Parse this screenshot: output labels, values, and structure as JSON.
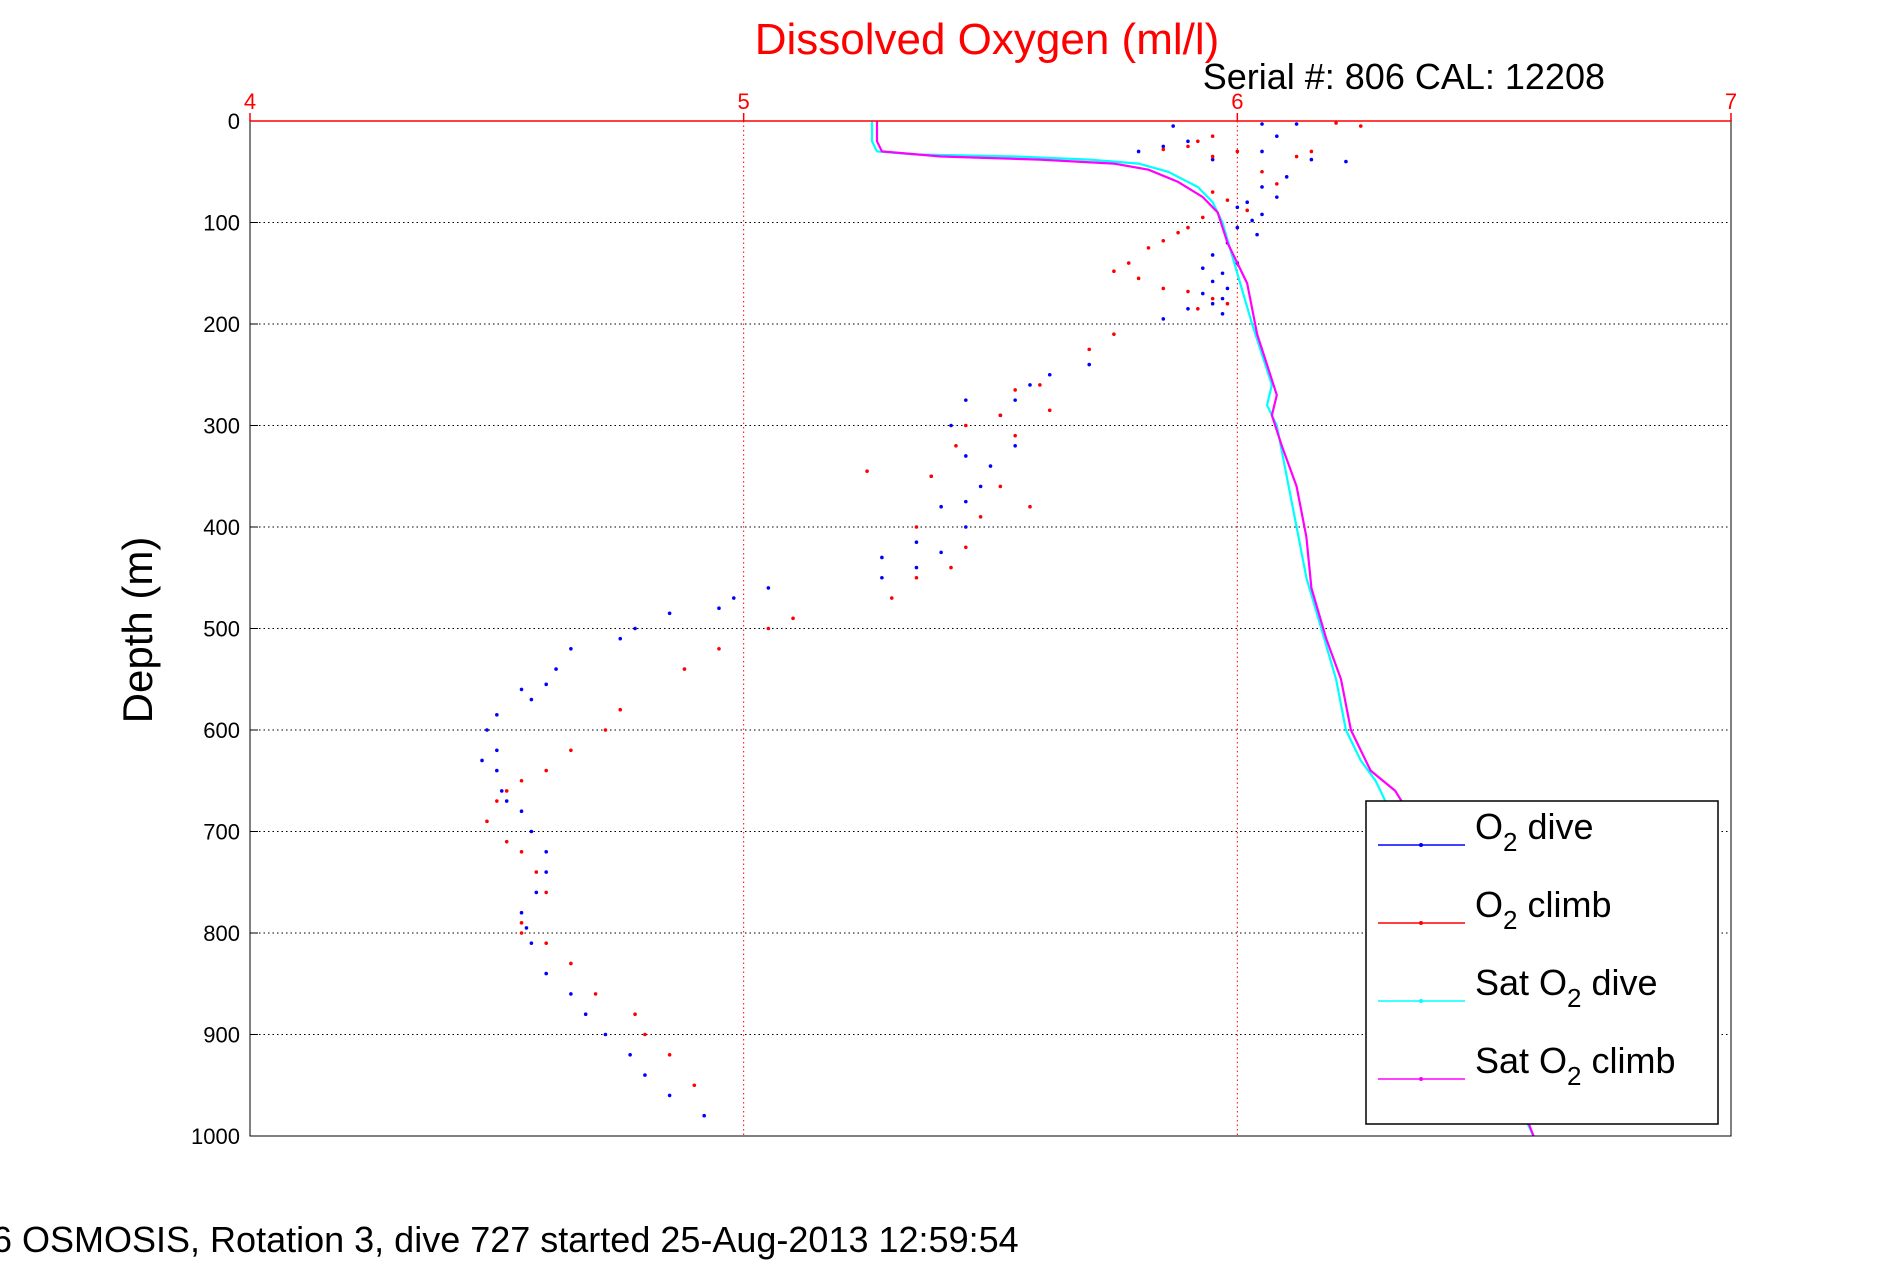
{
  "chart_data": {
    "type": "scatter",
    "title": "Dissolved Oxygen (ml/l)",
    "subtitle": "Serial #: 806  CAL: 12208",
    "footer": "6 OSMOSIS, Rotation 3, dive 727 started 25-Aug-2013 12:59:54",
    "xlabel": "",
    "ylabel": "Depth (m)",
    "xlim": [
      4,
      7
    ],
    "ylim": [
      0,
      1000
    ],
    "y_reversed": true,
    "x_axis_position": "top",
    "grid": true,
    "legend_position": "bottom-right",
    "x_ticks": [
      "4",
      "5",
      "6",
      "7"
    ],
    "y_ticks": [
      "0",
      "100",
      "200",
      "300",
      "400",
      "500",
      "600",
      "700",
      "800",
      "900",
      "1000"
    ],
    "colors": {
      "title": "#ff0000",
      "x_axis": "#ff0000",
      "o2_dive": "#0000ff",
      "o2_climb": "#ff0000",
      "sat_dive": "#00ffff",
      "sat_climb": "#ff00ff"
    },
    "series": [
      {
        "name": "O2 dive",
        "label_main": "O",
        "label_sub": "2",
        "label_tail": " dive",
        "style": "points",
        "color": "#0000ff",
        "x": [
          5.87,
          6.05,
          6.12,
          6.08,
          5.9,
          5.85,
          6.05,
          5.8,
          5.95,
          6.15,
          6.22,
          6.1,
          6.05,
          6.08,
          6.02,
          6.0,
          6.05,
          6.03,
          6.0,
          6.04,
          5.98,
          5.95,
          6.0,
          5.93,
          5.97,
          5.95,
          5.98,
          5.93,
          5.97,
          5.95,
          5.9,
          5.97,
          5.85,
          5.7,
          5.62,
          5.58,
          5.55,
          5.45,
          5.52,
          5.42,
          5.55,
          5.45,
          5.5,
          5.38,
          5.48,
          5.45,
          5.4,
          5.45,
          5.35,
          5.4,
          5.28,
          5.35,
          5.28,
          5.05,
          4.98,
          4.95,
          4.85,
          4.78,
          4.75,
          4.65,
          4.62,
          4.6,
          4.55,
          4.57,
          4.5,
          4.48,
          4.5,
          4.47,
          4.5,
          4.51,
          4.52,
          4.55,
          4.57,
          4.6,
          4.6,
          4.58,
          4.55,
          4.56,
          4.57,
          4.6,
          4.65,
          4.68,
          4.72,
          4.77,
          4.8,
          4.85,
          4.92
        ],
        "y": [
          5,
          3,
          3,
          15,
          20,
          25,
          30,
          30,
          38,
          38,
          40,
          55,
          65,
          75,
          80,
          85,
          92,
          98,
          105,
          112,
          120,
          132,
          140,
          145,
          150,
          158,
          165,
          170,
          175,
          180,
          185,
          190,
          195,
          240,
          250,
          260,
          275,
          275,
          290,
          300,
          320,
          330,
          340,
          350,
          360,
          375,
          380,
          400,
          415,
          425,
          430,
          440,
          450,
          460,
          470,
          480,
          485,
          500,
          510,
          520,
          540,
          555,
          560,
          570,
          585,
          600,
          620,
          630,
          640,
          660,
          670,
          680,
          700,
          720,
          740,
          760,
          780,
          795,
          810,
          840,
          860,
          880,
          900,
          920,
          940,
          960,
          980
        ]
      },
      {
        "name": "O2 climb",
        "label_main": "O",
        "label_sub": "2",
        "label_tail": " climb",
        "style": "points",
        "color": "#ff0000",
        "x": [
          6.25,
          6.2,
          5.95,
          5.92,
          5.9,
          5.85,
          6.0,
          6.15,
          5.95,
          6.12,
          6.05,
          6.08,
          5.95,
          5.98,
          6.02,
          5.93,
          5.9,
          5.88,
          5.85,
          5.82,
          5.78,
          5.75,
          5.8,
          5.85,
          5.9,
          5.95,
          5.98,
          5.92,
          5.75,
          5.7,
          5.6,
          5.55,
          5.62,
          5.52,
          5.45,
          5.38,
          5.55,
          5.58,
          5.43,
          5.25,
          5.52,
          5.48,
          5.35,
          5.45,
          5.42,
          5.35,
          5.3,
          5.1,
          5.05,
          4.95,
          4.88,
          4.75,
          4.72,
          4.65,
          4.6,
          4.55,
          4.52,
          4.5,
          4.48,
          4.52,
          4.55,
          4.58,
          4.6,
          4.55,
          4.55,
          4.6,
          4.65,
          4.7,
          4.78,
          4.8,
          4.85,
          4.9
        ],
        "y": [
          5,
          2,
          15,
          20,
          25,
          28,
          30,
          30,
          35,
          35,
          50,
          62,
          70,
          78,
          88,
          95,
          105,
          110,
          118,
          125,
          140,
          148,
          155,
          165,
          168,
          175,
          180,
          185,
          210,
          225,
          260,
          265,
          285,
          290,
          300,
          350,
          310,
          380,
          320,
          345,
          360,
          390,
          400,
          420,
          440,
          450,
          470,
          490,
          500,
          520,
          540,
          580,
          600,
          620,
          640,
          650,
          660,
          670,
          690,
          710,
          720,
          740,
          760,
          790,
          800,
          810,
          830,
          860,
          880,
          900,
          920,
          950
        ]
      },
      {
        "name": "Sat O2 dive",
        "label_main": "Sat O",
        "label_sub": "2",
        "label_tail": " dive",
        "style": "line",
        "color": "#00ffff",
        "x": [
          5.26,
          5.26,
          5.27,
          5.35,
          5.55,
          5.7,
          5.8,
          5.86,
          5.92,
          5.95,
          5.97,
          6.0,
          6.03,
          6.05,
          6.07,
          6.06,
          6.08,
          6.1,
          6.12,
          6.14,
          6.17,
          6.2,
          6.22,
          6.25,
          6.28,
          6.3,
          6.35,
          6.45,
          6.55,
          6.6
        ],
        "y": [
          0,
          20,
          30,
          33,
          35,
          38,
          42,
          50,
          65,
          80,
          100,
          150,
          200,
          230,
          260,
          280,
          300,
          350,
          400,
          450,
          500,
          550,
          600,
          630,
          650,
          670,
          720,
          850,
          950,
          1000
        ]
      },
      {
        "name": "Sat O2 climb",
        "label_main": "Sat O",
        "label_sub": "2",
        "label_tail": " climb",
        "style": "line",
        "color": "#ff00ff",
        "x": [
          5.27,
          5.27,
          5.28,
          5.4,
          5.6,
          5.75,
          5.82,
          5.88,
          5.93,
          5.96,
          5.98,
          6.02,
          6.04,
          6.06,
          6.08,
          6.07,
          6.09,
          6.12,
          6.14,
          6.15,
          6.18,
          6.21,
          6.23,
          6.27,
          6.32,
          6.37,
          6.47,
          6.56,
          6.6
        ],
        "y": [
          0,
          20,
          30,
          35,
          38,
          42,
          48,
          60,
          75,
          90,
          120,
          160,
          210,
          240,
          270,
          290,
          320,
          360,
          410,
          460,
          510,
          550,
          600,
          640,
          660,
          700,
          830,
          950,
          1000
        ]
      }
    ]
  }
}
